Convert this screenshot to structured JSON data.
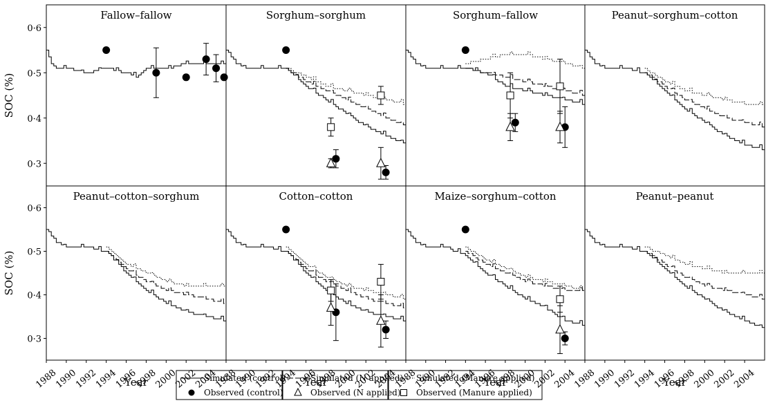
{
  "chart_data": {
    "type": "line",
    "ylabel": "SOC (%)",
    "xlabel": "Year",
    "xlim": [
      1988,
      2006
    ],
    "ylim": [
      0.25,
      0.65
    ],
    "yticks": [
      "0·3",
      "0·4",
      "0·5",
      "0·6"
    ],
    "xticks": [
      "1988",
      "1990",
      "1992",
      "1994",
      "1996",
      "1998",
      "2000",
      "2002",
      "2004"
    ],
    "grid": false,
    "legend": {
      "position": "bottom-center",
      "entries": [
        {
          "label": "Simulated (control)",
          "style": "solid-line"
        },
        {
          "label": "Observed (control)",
          "style": "filled-circle"
        },
        {
          "label": "Simulated (N applied)",
          "style": "dashed-line"
        },
        {
          "label": "Observed (N applied)",
          "style": "open-triangle"
        },
        {
          "label": "Simulated (Manure applied)",
          "style": "dotted-line"
        },
        {
          "label": "Observed (Manure applied)",
          "style": "open-square"
        }
      ]
    },
    "panels": [
      {
        "title": "Fallow–fallow",
        "series": [
          {
            "name": "Simulated (control)",
            "x": [
              1988,
              1988.5,
              1989,
              1990,
              1992,
              1994,
              1996,
              1997,
              1998,
              2000,
              2002,
              2004,
              2006
            ],
            "y": [
              0.55,
              0.52,
              0.51,
              0.51,
              0.5,
              0.51,
              0.5,
              0.49,
              0.51,
              0.51,
              0.52,
              0.52,
              0.52
            ]
          },
          {
            "name": "Observed (control)",
            "x": [
              1994,
              1999,
              2002,
              2004,
              2005,
              2005.8
            ],
            "y": [
              0.55,
              0.5,
              0.49,
              0.53,
              0.51,
              0.49
            ],
            "err": [
              0,
              0.055,
              0,
              0.035,
              0.03,
              0
            ]
          }
        ]
      },
      {
        "title": "Sorghum–sorghum",
        "series": [
          {
            "name": "Simulated (control)",
            "x": [
              1988,
              1989,
              1990,
              1992,
              1994,
              1996,
              1998,
              2000,
              2002,
              2004,
              2006
            ],
            "y": [
              0.55,
              0.52,
              0.51,
              0.51,
              0.51,
              0.47,
              0.44,
              0.41,
              0.38,
              0.36,
              0.34
            ]
          },
          {
            "name": "Simulated (N applied)",
            "x": [
              1994,
              1996,
              1998,
              2000,
              2002,
              2004,
              2006
            ],
            "y": [
              0.51,
              0.48,
              0.46,
              0.44,
              0.42,
              0.4,
              0.38
            ]
          },
          {
            "name": "Simulated (Manure applied)",
            "x": [
              1994,
              1996,
              1998,
              2000,
              2002,
              2004,
              2006
            ],
            "y": [
              0.51,
              0.49,
              0.47,
              0.46,
              0.45,
              0.44,
              0.43
            ]
          },
          {
            "name": "Observed (control)",
            "x": [
              1994,
              1999,
              2004
            ],
            "y": [
              0.55,
              0.31,
              0.28
            ],
            "err": [
              0,
              0.02,
              0.015
            ]
          },
          {
            "name": "Observed (N applied)",
            "x": [
              1998.5,
              2003.5
            ],
            "y": [
              0.3,
              0.3
            ],
            "err": [
              0.01,
              0.035
            ]
          },
          {
            "name": "Observed (Manure applied)",
            "x": [
              1998.5,
              2003.5
            ],
            "y": [
              0.38,
              0.45
            ],
            "err": [
              0.02,
              0.02
            ]
          }
        ]
      },
      {
        "title": "Sorghum–fallow",
        "series": [
          {
            "name": "Simulated (control)",
            "x": [
              1988,
              1989,
              1990,
              1992,
              1994,
              1996,
              1998,
              2000,
              2002,
              2004,
              2006
            ],
            "y": [
              0.55,
              0.52,
              0.51,
              0.51,
              0.51,
              0.5,
              0.47,
              0.46,
              0.45,
              0.44,
              0.43
            ]
          },
          {
            "name": "Simulated (N applied)",
            "x": [
              1994,
              1996,
              1998,
              2000,
              2002,
              2004,
              2006
            ],
            "y": [
              0.51,
              0.5,
              0.49,
              0.48,
              0.47,
              0.46,
              0.45
            ]
          },
          {
            "name": "Simulated (Manure applied)",
            "x": [
              1994,
              1996,
              1998,
              2000,
              2002,
              2004,
              2006
            ],
            "y": [
              0.52,
              0.53,
              0.54,
              0.54,
              0.53,
              0.52,
              0.51
            ]
          },
          {
            "name": "Observed (control)",
            "x": [
              1994,
              1999,
              2004
            ],
            "y": [
              0.55,
              0.39,
              0.38
            ],
            "err": [
              0,
              0.02,
              0.045
            ]
          },
          {
            "name": "Observed (N applied)",
            "x": [
              1998.5,
              2003.5
            ],
            "y": [
              0.38,
              0.38
            ],
            "err": [
              0.03,
              0.035
            ]
          },
          {
            "name": "Observed (Manure applied)",
            "x": [
              1998.5,
              2003.5
            ],
            "y": [
              0.45,
              0.47
            ],
            "err": [
              0.05,
              0.06
            ]
          }
        ]
      },
      {
        "title": "Peanut–sorghum–cotton",
        "series": [
          {
            "name": "Simulated (control)",
            "x": [
              1988,
              1989,
              1990,
              1992,
              1994,
              1996,
              1998,
              2000,
              2002,
              2004,
              2006
            ],
            "y": [
              0.55,
              0.52,
              0.51,
              0.51,
              0.5,
              0.46,
              0.42,
              0.39,
              0.36,
              0.34,
              0.33
            ]
          },
          {
            "name": "Simulated (N applied)",
            "x": [
              1994,
              1996,
              1998,
              2000,
              2002,
              2004,
              2006
            ],
            "y": [
              0.5,
              0.47,
              0.44,
              0.42,
              0.4,
              0.39,
              0.38
            ]
          },
          {
            "name": "Simulated (Manure applied)",
            "x": [
              1994,
              1996,
              1998,
              2000,
              2002,
              2004,
              2006
            ],
            "y": [
              0.51,
              0.48,
              0.46,
              0.45,
              0.44,
              0.43,
              0.43
            ]
          }
        ]
      },
      {
        "title": "Peanut–cotton–sorghum",
        "series": [
          {
            "name": "Simulated (control)",
            "x": [
              1988,
              1989,
              1990,
              1992,
              1994,
              1996,
              1998,
              2000,
              2002,
              2004,
              2006
            ],
            "y": [
              0.55,
              0.52,
              0.51,
              0.51,
              0.5,
              0.45,
              0.41,
              0.38,
              0.36,
              0.35,
              0.34
            ]
          },
          {
            "name": "Simulated (N applied)",
            "x": [
              1994,
              1996,
              1998,
              2000,
              2002,
              2004,
              2006
            ],
            "y": [
              0.5,
              0.46,
              0.43,
              0.41,
              0.4,
              0.39,
              0.38
            ]
          },
          {
            "name": "Simulated (Manure applied)",
            "x": [
              1994,
              1996,
              1998,
              2000,
              2002,
              2004,
              2006
            ],
            "y": [
              0.51,
              0.47,
              0.45,
              0.43,
              0.42,
              0.42,
              0.42
            ]
          }
        ]
      },
      {
        "title": "Cotton–cotton",
        "series": [
          {
            "name": "Simulated (control)",
            "x": [
              1988,
              1989,
              1990,
              1992,
              1994,
              1996,
              1998,
              2000,
              2002,
              2004,
              2006
            ],
            "y": [
              0.55,
              0.52,
              0.51,
              0.51,
              0.5,
              0.45,
              0.41,
              0.38,
              0.36,
              0.35,
              0.34
            ]
          },
          {
            "name": "Simulated (N applied)",
            "x": [
              1994,
              1996,
              1998,
              2000,
              2002,
              2004,
              2006
            ],
            "y": [
              0.5,
              0.46,
              0.43,
              0.41,
              0.39,
              0.38,
              0.37
            ]
          },
          {
            "name": "Simulated (Manure applied)",
            "x": [
              1994,
              1996,
              1998,
              2000,
              2002,
              2004,
              2006
            ],
            "y": [
              0.51,
              0.47,
              0.44,
              0.42,
              0.41,
              0.4,
              0.39
            ]
          },
          {
            "name": "Observed (control)",
            "x": [
              1994,
              1999,
              2004
            ],
            "y": [
              0.55,
              0.36,
              0.32
            ],
            "err": [
              0,
              0.065,
              0.02
            ]
          },
          {
            "name": "Observed (N applied)",
            "x": [
              1998.5,
              2003.5
            ],
            "y": [
              0.37,
              0.34
            ],
            "err": [
              0.04,
              0.06
            ]
          },
          {
            "name": "Observed (Manure applied)",
            "x": [
              1998.5,
              2003.5
            ],
            "y": [
              0.41,
              0.43
            ],
            "err": [
              0.025,
              0.04
            ]
          }
        ]
      },
      {
        "title": "Maize–sorghum–cotton",
        "series": [
          {
            "name": "Simulated (control)",
            "x": [
              1988,
              1989,
              1990,
              1992,
              1994,
              1996,
              1998,
              2000,
              2002,
              2004,
              2006
            ],
            "y": [
              0.55,
              0.52,
              0.51,
              0.51,
              0.49,
              0.45,
              0.42,
              0.39,
              0.37,
              0.34,
              0.33
            ]
          },
          {
            "name": "Simulated (N applied)",
            "x": [
              1994,
              1996,
              1998,
              2000,
              2002,
              2004,
              2006
            ],
            "y": [
              0.5,
              0.47,
              0.45,
              0.43,
              0.42,
              0.41,
              0.41
            ]
          },
          {
            "name": "Simulated (Manure applied)",
            "x": [
              1994,
              1996,
              1998,
              2000,
              2002,
              2004,
              2006
            ],
            "y": [
              0.51,
              0.48,
              0.46,
              0.44,
              0.43,
              0.42,
              0.41
            ]
          },
          {
            "name": "Observed (control)",
            "x": [
              1994,
              2004
            ],
            "y": [
              0.55,
              0.3
            ],
            "err": [
              0,
              0.015
            ]
          },
          {
            "name": "Observed (N applied)",
            "x": [
              2003.5
            ],
            "y": [
              0.32
            ],
            "err": [
              0.055
            ]
          },
          {
            "name": "Observed (Manure applied)",
            "x": [
              2003.5
            ],
            "y": [
              0.39
            ],
            "err": [
              0.03
            ]
          }
        ]
      },
      {
        "title": "Peanut–peanut",
        "series": [
          {
            "name": "Simulated (control)",
            "x": [
              1988,
              1989,
              1990,
              1992,
              1994,
              1996,
              1998,
              2000,
              2002,
              2004,
              2006
            ],
            "y": [
              0.55,
              0.52,
              0.51,
              0.51,
              0.5,
              0.46,
              0.42,
              0.39,
              0.36,
              0.34,
              0.32
            ]
          },
          {
            "name": "Simulated (N applied)",
            "x": [
              1994,
              1996,
              1998,
              2000,
              2002,
              2004,
              2006
            ],
            "y": [
              0.5,
              0.47,
              0.44,
              0.42,
              0.41,
              0.4,
              0.39
            ]
          },
          {
            "name": "Simulated (Manure applied)",
            "x": [
              1994,
              1996,
              1998,
              2000,
              2002,
              2004,
              2006
            ],
            "y": [
              0.51,
              0.49,
              0.47,
              0.46,
              0.45,
              0.45,
              0.45
            ]
          }
        ]
      }
    ]
  }
}
